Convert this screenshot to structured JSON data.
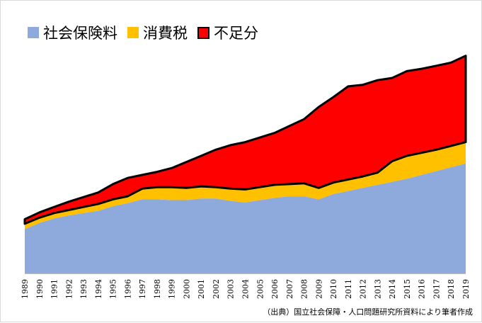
{
  "chart_data": {
    "type": "area",
    "stacked": true,
    "x": [
      "1989",
      "1990",
      "1991",
      "1992",
      "1993",
      "1994",
      "1995",
      "1996",
      "1997",
      "1998",
      "1999",
      "2000",
      "2001",
      "2002",
      "2003",
      "2004",
      "2005",
      "2006",
      "2007",
      "2008",
      "2009",
      "2010",
      "2011",
      "2012",
      "2013",
      "2014",
      "2015",
      "2016",
      "2017",
      "2018",
      "2019"
    ],
    "series": [
      {
        "name": "社会保険料",
        "color": "#8EA9DB",
        "values": [
          29,
          33,
          36,
          38,
          39.5,
          41,
          44,
          46,
          48.5,
          48.5,
          48,
          48,
          49,
          49,
          47.5,
          46.5,
          48,
          49.5,
          50.5,
          50.5,
          48.5,
          52,
          54,
          56,
          58,
          60,
          62,
          64.5,
          67,
          69.5,
          72
        ]
      },
      {
        "name": "消費税",
        "color": "#FFC000",
        "values": [
          3.5,
          3.5,
          3.5,
          3.5,
          4,
          4.5,
          4.5,
          4.5,
          7,
          8,
          8.5,
          8,
          8,
          7.5,
          8,
          8.5,
          8.5,
          8.5,
          8,
          8.5,
          7.5,
          7.5,
          7.5,
          7.5,
          8,
          13.5,
          15,
          14.5,
          14,
          14,
          14
        ]
      },
      {
        "name": "不足分",
        "color": "#FF0000",
        "outline": "#000000",
        "values": [
          3,
          3.5,
          4,
          5.5,
          6.5,
          7.5,
          10,
          12,
          9,
          10,
          12.5,
          17,
          20,
          24.5,
          28.5,
          31,
          32.5,
          34,
          38,
          42,
          53,
          56,
          61,
          60,
          60.5,
          54.5,
          55.5,
          55,
          55,
          54.5,
          56.5
        ]
      }
    ],
    "legend_position": "top-left",
    "grid": false,
    "ylim": [
      0,
      160
    ],
    "yaxis_visible": false
  },
  "source_note": "（出典）国立社会保障・人口問題研究所資料により筆者作成"
}
